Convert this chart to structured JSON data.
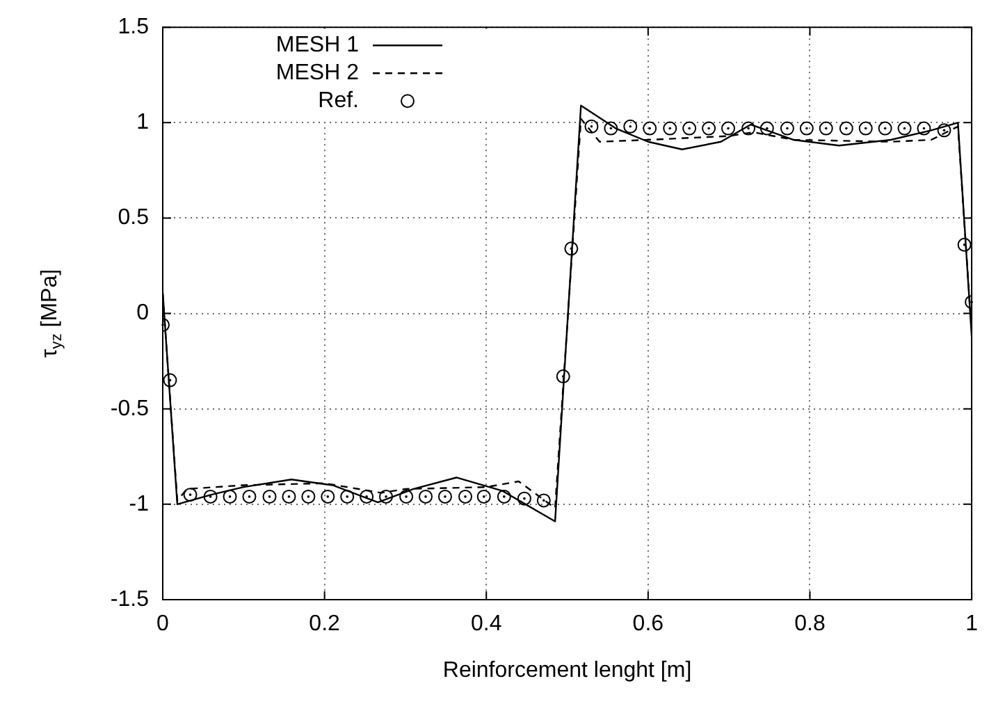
{
  "chart_data": {
    "type": "line",
    "xlabel": "Reinforcement lenght [m]",
    "ylabel": "τ$_{yz}$ [MPa]",
    "xlim": [
      0,
      1
    ],
    "xticks": [
      0,
      0.2,
      0.4,
      0.6,
      0.8,
      1
    ],
    "ylim": [
      -1.5,
      1.5
    ],
    "yticks": [
      -1.5,
      -1,
      -0.5,
      0,
      0.5,
      1,
      1.5
    ],
    "grid": true,
    "legend": "top left",
    "series": [
      {
        "name": "MESH 1",
        "type": "line",
        "line_style": "solid",
        "marker": "none",
        "color": "#000000",
        "x": [
          0,
          0.018,
          0.06,
          0.1,
          0.159,
          0.21,
          0.266,
          0.31,
          0.363,
          0.42,
          0.485,
          0.517,
          0.56,
          0.6,
          0.642,
          0.69,
          0.727,
          0.78,
          0.836,
          0.9,
          0.95,
          0.983,
          1
        ],
        "values": [
          0.11,
          -1.0,
          -0.95,
          -0.91,
          -0.87,
          -0.9,
          -0.99,
          -0.92,
          -0.86,
          -0.93,
          -1.09,
          1.09,
          0.97,
          0.9,
          0.86,
          0.9,
          0.99,
          0.91,
          0.88,
          0.91,
          0.96,
          1.0,
          -0.12
        ]
      },
      {
        "name": "MESH 2",
        "type": "line",
        "line_style": "dashed",
        "marker": "none",
        "color": "#000000",
        "x": [
          0,
          0.018,
          0.03,
          0.1,
          0.2,
          0.27,
          0.3,
          0.4,
          0.44,
          0.485,
          0.517,
          0.54,
          0.6,
          0.7,
          0.73,
          0.78,
          0.9,
          0.95,
          0.983,
          1
        ],
        "values": [
          0.1,
          -0.98,
          -0.92,
          -0.9,
          -0.89,
          -0.94,
          -0.92,
          -0.91,
          -0.88,
          -1.02,
          1.02,
          0.9,
          0.91,
          0.93,
          0.95,
          0.91,
          0.9,
          0.91,
          0.98,
          -0.1
        ]
      },
      {
        "name": "Ref.",
        "type": "scatter",
        "marker": "circle",
        "color": "#000000",
        "x": [
          0,
          0.009,
          0.034,
          0.059,
          0.083,
          0.107,
          0.132,
          0.156,
          0.18,
          0.204,
          0.228,
          0.252,
          0.276,
          0.301,
          0.325,
          0.349,
          0.374,
          0.397,
          0.422,
          0.447,
          0.471,
          0.495,
          0.505,
          0.53,
          0.554,
          0.578,
          0.602,
          0.627,
          0.651,
          0.675,
          0.699,
          0.724,
          0.747,
          0.772,
          0.796,
          0.82,
          0.845,
          0.869,
          0.893,
          0.917,
          0.941,
          0.966,
          0.991,
          1.0
        ],
        "values": [
          -0.06,
          -0.35,
          -0.95,
          -0.96,
          -0.96,
          -0.96,
          -0.96,
          -0.96,
          -0.96,
          -0.96,
          -0.96,
          -0.96,
          -0.96,
          -0.96,
          -0.96,
          -0.96,
          -0.96,
          -0.96,
          -0.96,
          -0.97,
          -0.98,
          -0.33,
          0.34,
          0.98,
          0.97,
          0.98,
          0.97,
          0.97,
          0.97,
          0.97,
          0.97,
          0.97,
          0.97,
          0.97,
          0.97,
          0.97,
          0.97,
          0.97,
          0.97,
          0.97,
          0.97,
          0.96,
          0.36,
          0.06
        ]
      }
    ]
  }
}
